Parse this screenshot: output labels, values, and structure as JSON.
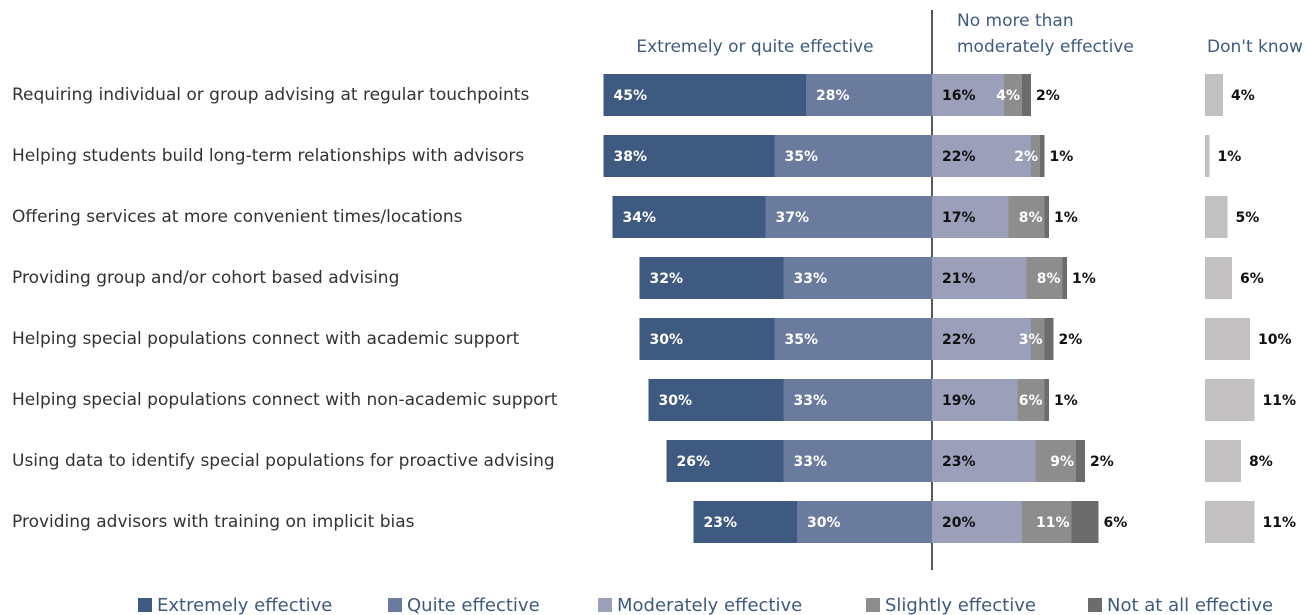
{
  "chart_data": {
    "type": "diverging-bar",
    "headers": {
      "positive": "Extremely or quite effective",
      "negative": "No more than moderately effective"
    },
    "categories": [
      "Requiring individual or group advising at regular touchpoints",
      "Helping students build long-term relationships with advisors",
      "Offering services at more convenient times/locations",
      "Providing group and/or cohort based advising",
      "Helping special populations connect with academic support",
      "Helping special populations connect with non-academic support",
      "Using data to identify special populations for proactive advising",
      "Providing advisors with training on implicit bias"
    ],
    "series": [
      {
        "name": "Extremely effective",
        "color": "#3f5a80",
        "values": [
          45,
          38,
          34,
          32,
          30,
          30,
          26,
          23
        ],
        "value_labels": [
          "45%",
          "38%",
          "34%",
          "32%",
          "30%",
          "30%",
          "26%",
          "23%"
        ]
      },
      {
        "name": "Quite effective",
        "color": "#6b7b9d",
        "values": [
          28,
          35,
          37,
          33,
          35,
          33,
          33,
          30
        ],
        "value_labels": [
          "28%",
          "35%",
          "37%",
          "33%",
          "35%",
          "33%",
          "33%",
          "30%"
        ]
      },
      {
        "name": "Moderately effective",
        "color": "#9b9fba",
        "values": [
          16,
          22,
          17,
          21,
          22,
          19,
          23,
          20
        ],
        "value_labels": [
          "16%",
          "22%",
          "17%",
          "21%",
          "22%",
          "19%",
          "23%",
          "20%"
        ]
      },
      {
        "name": "Slightly effective",
        "color": "#8d8d8d",
        "values": [
          4,
          2,
          8,
          8,
          3,
          6,
          9,
          11
        ],
        "value_labels": [
          "4%",
          "2%",
          "8%",
          "8%",
          "3%",
          "6%",
          "9%",
          "11%"
        ]
      },
      {
        "name": "Not at all effective",
        "color": "#6c6c6c",
        "values": [
          2,
          1,
          1,
          1,
          2,
          1,
          2,
          6
        ],
        "value_labels": [
          "2%",
          "1%",
          "1%",
          "1%",
          "2%",
          "1%",
          "2%",
          "6%"
        ]
      }
    ],
    "dont_know": {
      "label": "Don't know",
      "color": "#c2c0c0",
      "values": [
        4,
        1,
        5,
        6,
        10,
        11,
        8,
        11
      ],
      "value_labels": [
        "4%",
        "1%",
        "5%",
        "6%",
        "10%",
        "11%",
        "8%",
        "11%"
      ]
    }
  }
}
